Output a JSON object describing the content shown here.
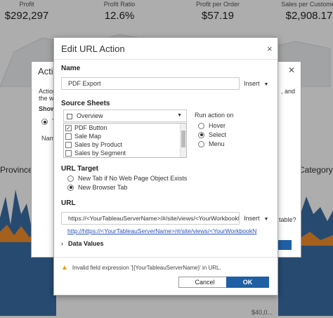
{
  "dashboard": {
    "kpis": [
      {
        "label": "Profit",
        "value": "$292,297"
      },
      {
        "label": "Profit Ratio",
        "value": "12.6%"
      },
      {
        "label": "Profit per Order",
        "value": "$57.19"
      },
      {
        "label": "Sales per Customer",
        "value": "$2,908.17"
      }
    ],
    "left_section": "Provinces:",
    "right_section": "Category -",
    "axis_label": "$40,0..."
  },
  "background_dialog": {
    "title": "Actio",
    "text_1": "Action",
    "text_2": "the w",
    "show_label": "Show",
    "radio_label": "T",
    "col_label": "Nam",
    "right_text": ", and",
    "editable": "table?"
  },
  "dialog": {
    "title": "Edit URL Action",
    "close": "×",
    "name_label": "Name",
    "name_value": "PDF Export",
    "insert_label": "Insert",
    "source_sheets_label": "Source Sheets",
    "source_dropdown": "Overview",
    "sheets": [
      {
        "label": "PDF Button",
        "checked": true
      },
      {
        "label": "Sale Map",
        "checked": false
      },
      {
        "label": "Sales by Product",
        "checked": false
      },
      {
        "label": "Sales by Segment",
        "checked": false
      }
    ],
    "run_action_label": "Run action on",
    "run_options": [
      {
        "label": "Hover",
        "selected": false
      },
      {
        "label": "Select",
        "selected": true
      },
      {
        "label": "Menu",
        "selected": false
      }
    ],
    "url_target_label": "URL Target",
    "target_options": [
      {
        "label": "New Tab if No Web Page Object Exists",
        "selected": false
      },
      {
        "label": "New Browser Tab",
        "selected": true
      }
    ],
    "url_label": "URL",
    "url_value": "https://<YourTableauServerName>/#/site/views/<YourWorkbookI",
    "url_preview": "http://https://<YourTableauServerName>/#/site/views/<YourWorkbookN",
    "data_values_label": "Data Values",
    "warning": "Invalid field expression '[{YourTableauServerName}' in URL.",
    "cancel": "Cancel",
    "ok": "OK"
  },
  "colors": {
    "primary": "#1f5fa3",
    "area_blue": "#3a6ea5",
    "area_orange": "#f28e2b",
    "warning": "#e8a000"
  }
}
